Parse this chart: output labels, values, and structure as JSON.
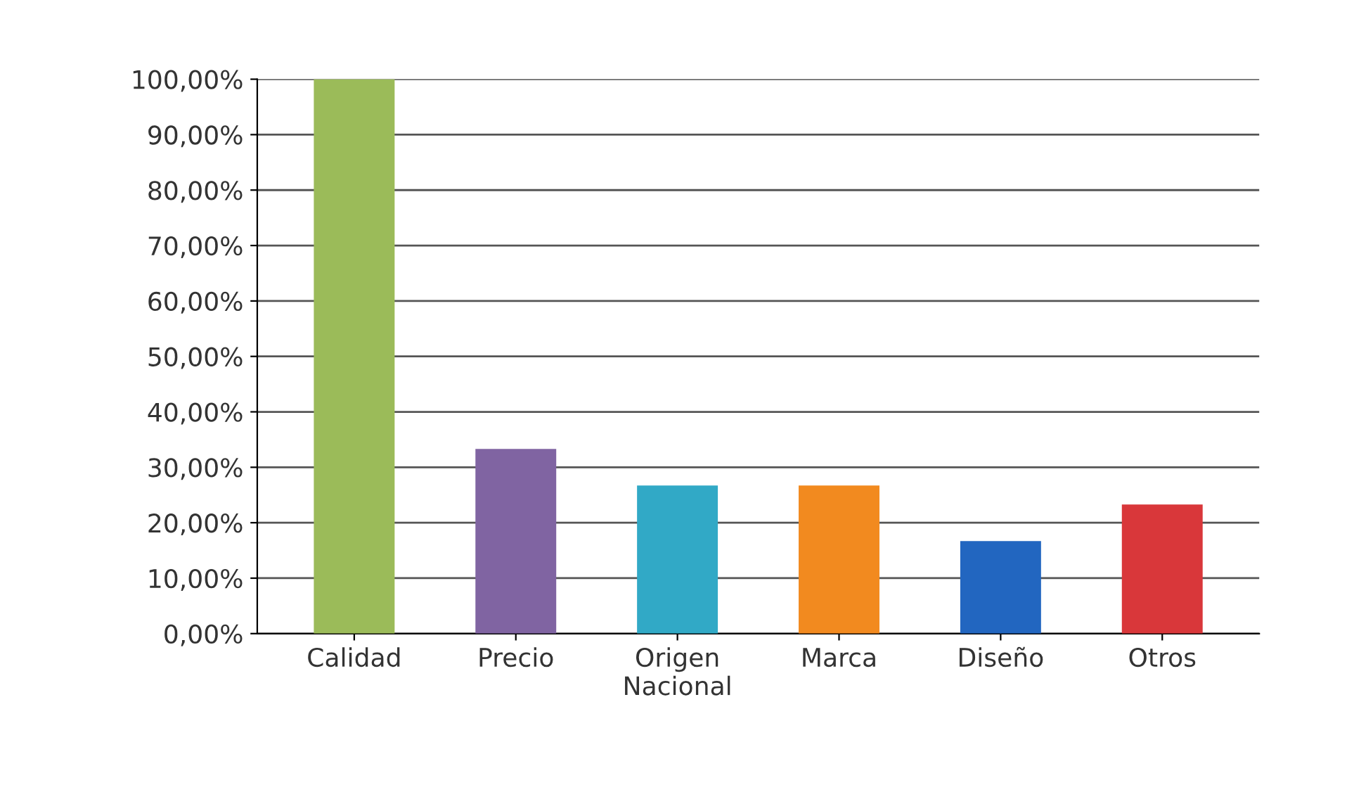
{
  "chart_data": {
    "type": "bar",
    "categories": [
      "Calidad",
      "Precio",
      "Origen\nNacional",
      "Marca",
      "Diseño",
      "Otros"
    ],
    "values": [
      100,
      33.3,
      26.7,
      26.7,
      16.7,
      23.3
    ],
    "colors": [
      "#9bbb59",
      "#8064a2",
      "#31a9c6",
      "#f28a1f",
      "#2266c0",
      "#d9373a"
    ],
    "ylim": [
      0,
      100
    ],
    "yticks": [
      {
        "value": 0,
        "label": "0,00%"
      },
      {
        "value": 10,
        "label": "10,00%"
      },
      {
        "value": 20,
        "label": "20,00%"
      },
      {
        "value": 30,
        "label": "30,00%"
      },
      {
        "value": 40,
        "label": "40,00%"
      },
      {
        "value": 50,
        "label": "50,00%"
      },
      {
        "value": 60,
        "label": "60,00%"
      },
      {
        "value": 70,
        "label": "70,00%"
      },
      {
        "value": 80,
        "label": "80,00%"
      },
      {
        "value": 90,
        "label": "90,00%"
      },
      {
        "value": 100,
        "label": "100,00%"
      }
    ],
    "grid": "y",
    "legend": false
  }
}
